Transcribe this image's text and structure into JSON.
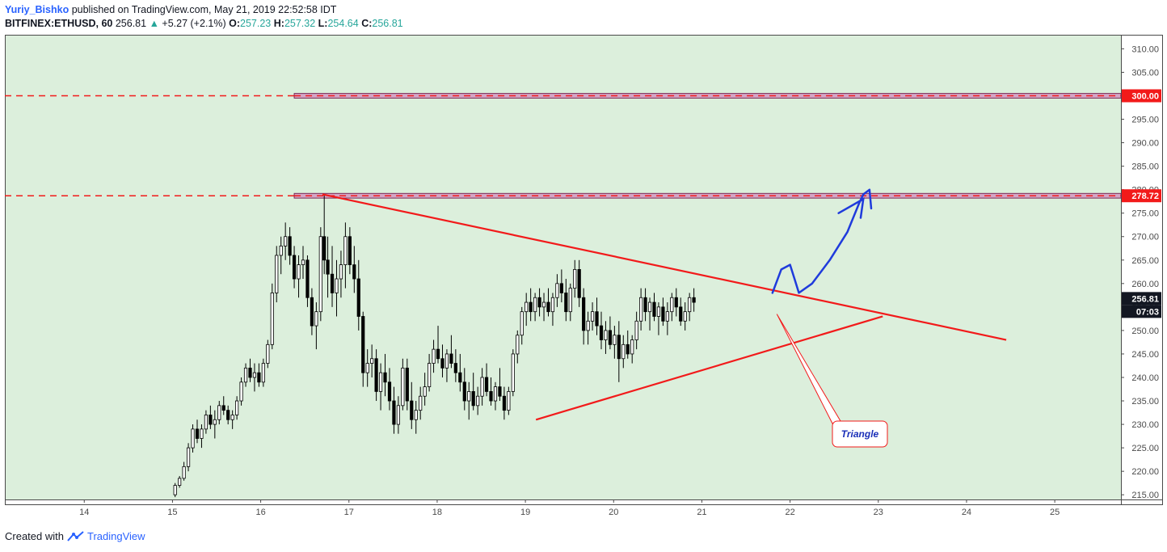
{
  "header": {
    "author": "Yuriy_Bishko",
    "published": "published on TradingView.com, May 21, 2019 22:52:58 IDT",
    "symbol": "BITFINEX:ETHUSD, 60",
    "last": "256.81",
    "change": "+5.27 (+2.1%)",
    "o_label": "O:",
    "o_value": "257.23",
    "h_label": "H:",
    "h_value": "257.32",
    "l_label": "L:",
    "l_value": "254.64",
    "c_label": "C:",
    "c_value": "256.81"
  },
  "footer": {
    "created_with": "Created with",
    "brand": "TradingView"
  },
  "colors": {
    "plot_bg": "#dcefdc",
    "line_red": "#f21a1a",
    "zone_fill": "#d4a5c5",
    "arrow_blue": "#1f3bdc",
    "price_tag": "#f21a1a",
    "current_tag": "#131722"
  },
  "chart_data": {
    "type": "candlestick",
    "x_ticks": [
      "14",
      "15",
      "16",
      "17",
      "18",
      "19",
      "20",
      "21",
      "22",
      "23",
      "24",
      "25"
    ],
    "y_ticks": [
      "215.00",
      "220.00",
      "225.00",
      "230.00",
      "235.00",
      "240.00",
      "245.00",
      "250.00",
      "255.00",
      "260.00",
      "265.00",
      "270.00",
      "275.00",
      "280.00",
      "285.00",
      "290.00",
      "295.00",
      "300.00",
      "305.00",
      "310.00"
    ],
    "ylim": [
      214,
      313
    ],
    "xlim": [
      13.1,
      25.75
    ],
    "candles": [
      [
        15.03,
        215,
        217.5,
        214.5,
        217
      ],
      [
        15.08,
        217,
        219,
        216.5,
        218.5
      ],
      [
        15.13,
        218.5,
        222,
        218,
        221
      ],
      [
        15.18,
        221,
        226,
        220,
        225
      ],
      [
        15.23,
        225,
        230,
        224,
        229
      ],
      [
        15.28,
        229,
        231,
        226,
        227
      ],
      [
        15.33,
        227,
        230,
        225,
        229
      ],
      [
        15.38,
        229,
        233,
        228,
        232
      ],
      [
        15.43,
        232,
        234,
        229,
        230
      ],
      [
        15.48,
        230,
        233,
        227,
        231
      ],
      [
        15.53,
        231,
        235,
        230,
        234
      ],
      [
        15.58,
        234,
        236,
        232,
        233
      ],
      [
        15.63,
        233,
        234,
        230,
        231
      ],
      [
        15.68,
        231,
        233,
        229,
        232
      ],
      [
        15.73,
        232,
        236,
        231,
        235
      ],
      [
        15.78,
        235,
        240,
        234,
        239
      ],
      [
        15.83,
        239,
        243,
        238,
        242
      ],
      [
        15.88,
        242,
        244,
        239,
        240
      ],
      [
        15.93,
        240,
        243,
        237,
        241
      ],
      [
        15.98,
        241,
        243,
        238,
        239
      ],
      [
        16.03,
        239,
        244,
        238,
        243
      ],
      [
        16.08,
        243,
        248,
        242,
        247
      ],
      [
        16.13,
        247,
        260,
        246,
        258
      ],
      [
        16.18,
        258,
        268,
        256,
        266
      ],
      [
        16.23,
        266,
        270,
        262,
        268
      ],
      [
        16.28,
        268,
        273,
        265,
        270
      ],
      [
        16.33,
        270,
        272,
        264,
        266
      ],
      [
        16.38,
        266,
        268,
        259,
        261
      ],
      [
        16.43,
        261,
        266,
        257,
        264
      ],
      [
        16.48,
        264,
        268,
        261,
        265
      ],
      [
        16.53,
        265,
        266,
        255,
        257
      ],
      [
        16.58,
        257,
        259,
        249,
        251
      ],
      [
        16.63,
        251,
        256,
        246,
        254
      ],
      [
        16.68,
        254,
        272,
        252,
        270
      ],
      [
        16.72,
        270,
        279,
        262,
        265
      ],
      [
        16.76,
        265,
        270,
        257,
        262
      ],
      [
        16.81,
        262,
        268,
        255,
        258
      ],
      [
        16.86,
        258,
        265,
        253,
        261
      ],
      [
        16.91,
        261,
        267,
        257,
        264
      ],
      [
        16.96,
        264,
        273,
        259,
        270
      ],
      [
        17.01,
        270,
        272,
        262,
        264
      ],
      [
        17.06,
        264,
        268,
        258,
        261
      ],
      [
        17.11,
        261,
        265,
        250,
        253
      ],
      [
        17.16,
        253,
        254,
        238,
        241
      ],
      [
        17.21,
        241,
        246,
        238,
        243
      ],
      [
        17.26,
        243,
        247,
        240,
        244
      ],
      [
        17.31,
        244,
        246,
        235,
        237
      ],
      [
        17.36,
        237,
        243,
        233,
        241
      ],
      [
        17.41,
        241,
        245,
        236,
        239
      ],
      [
        17.46,
        239,
        242,
        233,
        235
      ],
      [
        17.51,
        235,
        238,
        228,
        230
      ],
      [
        17.56,
        230,
        236,
        228,
        234
      ],
      [
        17.61,
        234,
        244,
        233,
        242
      ],
      [
        17.66,
        242,
        244,
        233,
        235
      ],
      [
        17.71,
        235,
        239,
        229,
        231
      ],
      [
        17.76,
        231,
        235,
        228,
        233
      ],
      [
        17.81,
        233,
        238,
        231,
        236
      ],
      [
        17.86,
        236,
        241,
        234,
        238
      ],
      [
        17.91,
        238,
        245,
        237,
        243
      ],
      [
        17.96,
        243,
        248,
        241,
        246
      ],
      [
        18.01,
        246,
        251,
        243,
        244
      ],
      [
        18.06,
        244,
        247,
        240,
        242
      ],
      [
        18.11,
        242,
        246,
        239,
        245
      ],
      [
        18.16,
        245,
        249,
        242,
        243
      ],
      [
        18.21,
        243,
        246,
        239,
        241
      ],
      [
        18.26,
        241,
        245,
        237,
        239
      ],
      [
        18.31,
        239,
        242,
        233,
        235
      ],
      [
        18.36,
        235,
        239,
        231,
        237
      ],
      [
        18.41,
        237,
        241,
        233,
        234
      ],
      [
        18.46,
        234,
        238,
        232,
        236
      ],
      [
        18.51,
        236,
        242,
        234,
        240
      ],
      [
        18.56,
        240,
        243,
        236,
        237
      ],
      [
        18.61,
        237,
        240,
        234,
        235
      ],
      [
        18.66,
        235,
        239,
        233,
        238
      ],
      [
        18.71,
        238,
        242,
        235,
        236
      ],
      [
        18.76,
        236,
        238,
        231,
        233
      ],
      [
        18.81,
        233,
        238,
        232,
        237
      ],
      [
        18.86,
        237,
        246,
        236,
        245
      ],
      [
        18.91,
        245,
        250,
        243,
        249
      ],
      [
        18.96,
        249,
        255,
        247,
        254
      ],
      [
        19.01,
        254,
        258,
        251,
        256
      ],
      [
        19.06,
        256,
        259,
        252,
        254
      ],
      [
        19.11,
        254,
        258,
        252,
        257
      ],
      [
        19.16,
        257,
        259,
        253,
        255
      ],
      [
        19.21,
        255,
        258,
        252,
        256
      ],
      [
        19.26,
        256,
        259,
        253,
        254
      ],
      [
        19.31,
        254,
        258,
        251,
        257
      ],
      [
        19.36,
        257,
        262,
        255,
        260
      ],
      [
        19.41,
        260,
        263,
        256,
        258
      ],
      [
        19.46,
        258,
        261,
        252,
        254
      ],
      [
        19.51,
        254,
        260,
        252,
        259
      ],
      [
        19.56,
        259,
        265,
        257,
        263
      ],
      [
        19.61,
        263,
        265,
        255,
        257
      ],
      [
        19.66,
        257,
        259,
        247,
        250
      ],
      [
        19.71,
        250,
        254,
        247,
        252
      ],
      [
        19.76,
        252,
        256,
        250,
        254
      ],
      [
        19.81,
        254,
        257,
        249,
        251
      ],
      [
        19.86,
        251,
        254,
        246,
        248
      ],
      [
        19.91,
        248,
        252,
        245,
        250
      ],
      [
        19.96,
        250,
        253,
        246,
        247
      ],
      [
        20.01,
        247,
        251,
        244,
        249
      ],
      [
        20.06,
        249,
        252,
        239,
        244
      ],
      [
        20.11,
        244,
        249,
        242,
        247
      ],
      [
        20.16,
        247,
        250,
        244,
        245
      ],
      [
        20.21,
        245,
        249,
        243,
        248
      ],
      [
        20.26,
        248,
        254,
        246,
        252
      ],
      [
        20.31,
        252,
        259,
        250,
        257
      ],
      [
        20.36,
        257,
        259,
        252,
        254
      ],
      [
        20.41,
        254,
        257,
        250,
        256
      ],
      [
        20.46,
        256,
        258,
        252,
        253
      ],
      [
        20.51,
        253,
        256,
        249,
        255
      ],
      [
        20.56,
        255,
        257,
        251,
        252
      ],
      [
        20.61,
        252,
        256,
        249,
        254
      ],
      [
        20.66,
        254,
        258,
        252,
        257
      ],
      [
        20.71,
        257,
        259,
        253,
        255
      ],
      [
        20.76,
        255,
        257,
        251,
        252
      ],
      [
        20.81,
        252,
        256,
        250,
        254
      ],
      [
        20.86,
        254,
        258,
        252,
        257
      ],
      [
        20.91,
        257,
        259,
        254,
        256
      ]
    ],
    "lines": [
      {
        "name": "resistance",
        "x1": 16.7,
        "y1": 279,
        "x2": 24.45,
        "y2": 248
      },
      {
        "name": "support",
        "x1": 19.12,
        "y1": 231,
        "x2": 23.05,
        "y2": 253
      }
    ],
    "zones": [
      {
        "from": 16.38,
        "level_high": 300.5,
        "level_low": 299.5,
        "label": "300.00"
      },
      {
        "from": 16.38,
        "level_high": 279.2,
        "level_low": 278.2,
        "label": "278.72"
      }
    ],
    "current_price_label": "256.81",
    "countdown_label": "07:03",
    "annotation": "Triangle"
  }
}
